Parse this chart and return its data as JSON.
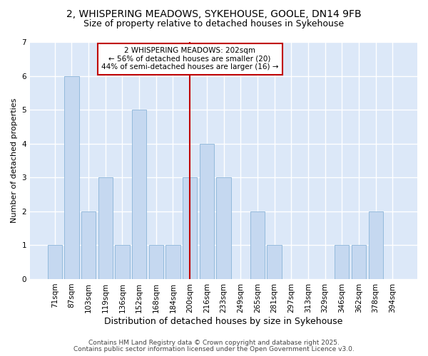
{
  "title_line1": "2, WHISPERING MEADOWS, SYKEHOUSE, GOOLE, DN14 9FB",
  "title_line2": "Size of property relative to detached houses in Sykehouse",
  "xlabel": "Distribution of detached houses by size in Sykehouse",
  "ylabel": "Number of detached properties",
  "categories": [
    "71sqm",
    "87sqm",
    "103sqm",
    "119sqm",
    "136sqm",
    "152sqm",
    "168sqm",
    "184sqm",
    "200sqm",
    "216sqm",
    "233sqm",
    "249sqm",
    "265sqm",
    "281sqm",
    "297sqm",
    "313sqm",
    "329sqm",
    "346sqm",
    "362sqm",
    "378sqm",
    "394sqm"
  ],
  "values": [
    1,
    6,
    2,
    3,
    1,
    5,
    1,
    1,
    3,
    4,
    3,
    0,
    2,
    1,
    0,
    0,
    0,
    1,
    1,
    2,
    0
  ],
  "bar_color": "#c5d8f0",
  "bar_edge_color": "#8ab4d8",
  "vline_index": 8,
  "vline_color": "#c00000",
  "annotation_line1": "2 WHISPERING MEADOWS: 202sqm",
  "annotation_line2": "← 56% of detached houses are smaller (20)",
  "annotation_line3": "44% of semi-detached houses are larger (16) →",
  "annotation_box_color": "#c00000",
  "ylim": [
    0,
    7
  ],
  "yticks": [
    0,
    1,
    2,
    3,
    4,
    5,
    6,
    7
  ],
  "footer_line1": "Contains HM Land Registry data © Crown copyright and database right 2025.",
  "footer_line2": "Contains public sector information licensed under the Open Government Licence v3.0.",
  "bg_color": "#dce8f8",
  "title_fontsize": 10,
  "subtitle_fontsize": 9,
  "ylabel_fontsize": 8,
  "xlabel_fontsize": 9,
  "tick_fontsize": 7.5,
  "annotation_fontsize": 7.5,
  "footer_fontsize": 6.5
}
